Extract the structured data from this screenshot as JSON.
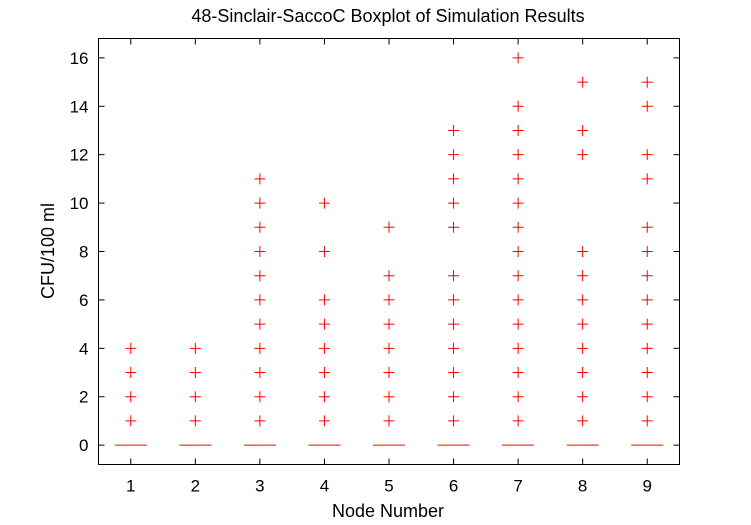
{
  "chart_data": {
    "type": "box",
    "title": "48-Sinclair-SaccoC Boxplot of Simulation Results",
    "xlabel": "Node Number",
    "ylabel": "CFU/100 ml",
    "categories": [
      "1",
      "2",
      "3",
      "4",
      "5",
      "6",
      "7",
      "8",
      "9"
    ],
    "ylim": [
      -0.8,
      16.8
    ],
    "yticks": [
      0,
      2,
      4,
      6,
      8,
      10,
      12,
      14,
      16
    ],
    "grid": false,
    "colors": {
      "marks": "#ff0000",
      "axes": "#000000"
    },
    "boxes": [
      {
        "node": "1",
        "median": 0,
        "outliers": [
          1,
          2,
          3,
          4
        ]
      },
      {
        "node": "2",
        "median": 0,
        "outliers": [
          1,
          2,
          3,
          4
        ]
      },
      {
        "node": "3",
        "median": 0,
        "outliers": [
          1,
          2,
          3,
          4,
          5,
          6,
          7,
          8,
          9,
          10,
          11
        ]
      },
      {
        "node": "4",
        "median": 0,
        "outliers": [
          1,
          2,
          3,
          4,
          5,
          6,
          8,
          10
        ]
      },
      {
        "node": "5",
        "median": 0,
        "outliers": [
          1,
          2,
          3,
          4,
          5,
          6,
          7,
          9
        ]
      },
      {
        "node": "6",
        "median": 0,
        "outliers": [
          1,
          2,
          3,
          4,
          5,
          6,
          7,
          9,
          10,
          11,
          12,
          13
        ]
      },
      {
        "node": "7",
        "median": 0,
        "outliers": [
          1,
          2,
          3,
          4,
          5,
          6,
          7,
          8,
          9,
          10,
          11,
          12,
          13,
          14,
          16
        ]
      },
      {
        "node": "8",
        "median": 0,
        "outliers": [
          1,
          2,
          3,
          4,
          5,
          6,
          7,
          8,
          12,
          13,
          15
        ]
      },
      {
        "node": "9",
        "median": 0,
        "outliers": [
          1,
          2,
          3,
          4,
          5,
          6,
          7,
          8,
          9,
          11,
          12,
          14,
          15
        ]
      }
    ]
  }
}
